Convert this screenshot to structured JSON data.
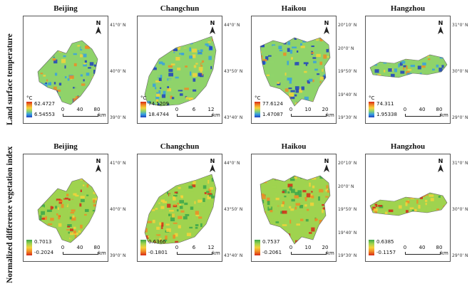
{
  "row_labels": {
    "lst": "Land surface temperature",
    "ndvi": "Normalized difference vegetation index"
  },
  "cities": [
    "Beijing",
    "Changchun",
    "Haikou",
    "Hangzhou"
  ],
  "north": "N",
  "lst_unit": "°C",
  "scale_unit": "km",
  "panels": {
    "lst": [
      {
        "max": "62.4727",
        "min": "6.54553",
        "scale": [
          "0",
          "40",
          "80"
        ],
        "lat": [
          "41°0' N",
          "40°0' N",
          "39°0' N"
        ]
      },
      {
        "max": "74.1209",
        "min": "18.4744",
        "scale": [
          "0",
          "6",
          "12"
        ],
        "lat": [
          "44°0' N",
          "43°50' N",
          "43°40' N"
        ]
      },
      {
        "max": "77.6124",
        "min": "1.47087",
        "scale": [
          "0",
          "10",
          "20"
        ],
        "lat": [
          "20°10' N",
          "20°0' N",
          "19°50' N",
          "19°40' N",
          "19°30' N"
        ]
      },
      {
        "max": "74.311",
        "min": "1.95338",
        "scale": [
          "0",
          "40",
          "80"
        ],
        "lat": [
          "31°0' N",
          "30°0' N",
          "29°0' N"
        ]
      }
    ],
    "ndvi": [
      {
        "max": "0.7013",
        "min": "-0.2024",
        "scale": [
          "0",
          "40",
          "80"
        ],
        "lat": [
          "41°0' N",
          "40°0' N",
          "39°0' N"
        ]
      },
      {
        "max": "0.6366",
        "min": "-0.1801",
        "scale": [
          "0",
          "6",
          "12"
        ],
        "lat": [
          "44°0' N",
          "43°50' N",
          "43°40' N"
        ]
      },
      {
        "max": "0.7537",
        "min": "-0.2061",
        "scale": [
          "0",
          "10",
          "20"
        ],
        "lat": [
          "20°10' N",
          "20°0' N",
          "19°50' N",
          "19°40' N",
          "19°30' N"
        ]
      },
      {
        "max": "0.6385",
        "min": "-0.1157",
        "scale": [
          "0",
          "40",
          "80"
        ],
        "lat": [
          "31°0' N",
          "30°0' N",
          "29°0' N"
        ]
      }
    ]
  },
  "colors": {
    "lst_ramp": [
      "#1f3fbf",
      "#37a0e0",
      "#8fd36a",
      "#f5d23a",
      "#f08a24",
      "#d62918"
    ],
    "ndvi_ramp": [
      "#d62918",
      "#f08a24",
      "#f5d23a",
      "#9fd34f",
      "#3aa64a"
    ]
  }
}
